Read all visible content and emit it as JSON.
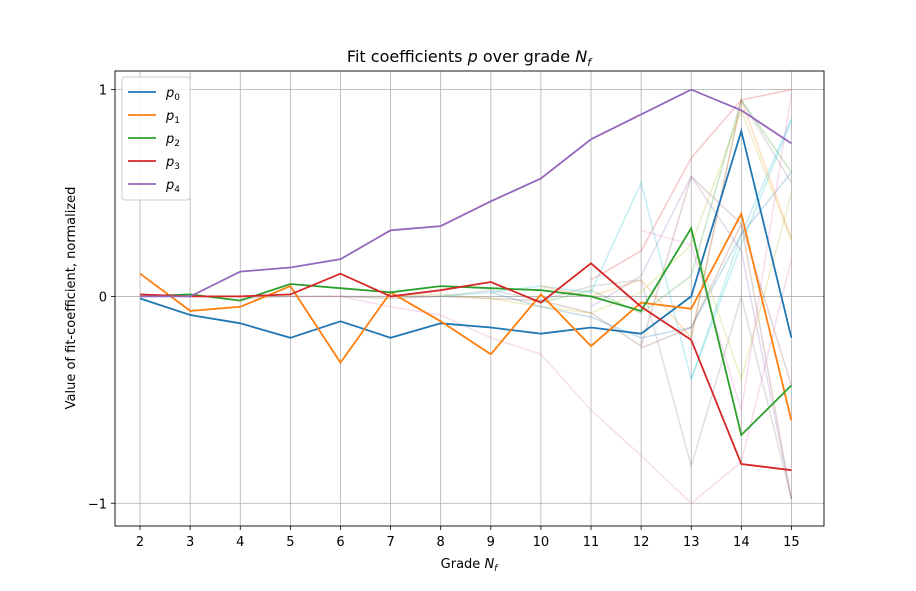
{
  "chart_data": {
    "type": "line",
    "title": "Fit coefficients p over grade N_f",
    "title_parts": {
      "pre": "Fit coefficients ",
      "var": "p",
      "mid": " over grade ",
      "var2": "N",
      "sub2": "f"
    },
    "xlabel": "Grade N_f",
    "xlabel_parts": {
      "pre": "Grade ",
      "var": "N",
      "sub": "f"
    },
    "ylabel": "Value of fit-coefficient, normalized",
    "x": [
      2,
      3,
      4,
      5,
      6,
      7,
      8,
      9,
      10,
      11,
      12,
      13,
      14,
      15
    ],
    "xlim": [
      1.5,
      15.65
    ],
    "ylim": [
      -1.11,
      1.09
    ],
    "yticks": [
      -1,
      0,
      1
    ],
    "ytick_labels": [
      "−1",
      "0",
      "1"
    ],
    "grid": true,
    "legend_position": "top-left",
    "series": [
      {
        "name": "p0",
        "label_base": "p",
        "label_sub": "0",
        "color": "#1f77b4",
        "values": [
          -0.01,
          -0.09,
          -0.13,
          -0.2,
          -0.12,
          -0.2,
          -0.13,
          -0.15,
          -0.18,
          -0.15,
          -0.18,
          0.0,
          0.8,
          -0.2
        ]
      },
      {
        "name": "p1",
        "label_base": "p",
        "label_sub": "1",
        "color": "#ff7f0e",
        "values": [
          0.11,
          -0.07,
          -0.05,
          0.05,
          -0.32,
          0.02,
          -0.12,
          -0.28,
          0.01,
          -0.24,
          -0.03,
          -0.06,
          0.4,
          -0.6
        ]
      },
      {
        "name": "p2",
        "label_base": "p",
        "label_sub": "2",
        "color": "#2ca02c",
        "values": [
          0.0,
          0.01,
          -0.02,
          0.06,
          0.04,
          0.02,
          0.05,
          0.04,
          0.03,
          0.0,
          -0.07,
          0.33,
          -0.67,
          -0.43
        ]
      },
      {
        "name": "p3",
        "label_base": "p",
        "label_sub": "3",
        "color": "#d62728",
        "values": [
          0.01,
          0.0,
          0.0,
          0.01,
          0.11,
          0.0,
          0.03,
          0.07,
          -0.03,
          0.16,
          -0.05,
          -0.21,
          -0.81,
          -0.84
        ]
      },
      {
        "name": "p4",
        "label_base": "p",
        "label_sub": "4",
        "color": "#9467bd",
        "values": [
          0.0,
          0.0,
          0.12,
          0.14,
          0.18,
          0.32,
          0.34,
          0.46,
          0.57,
          0.76,
          0.88,
          1.0,
          0.9,
          0.74
        ]
      }
    ],
    "background_series": [
      {
        "color": "#8c564b",
        "start": 4,
        "values": [
          -0.01,
          0.0,
          0.0,
          -0.01,
          0.0,
          -0.01,
          -0.02,
          -0.08,
          -0.24,
          0.58,
          0.35,
          -0.98
        ]
      },
      {
        "color": "#e377c2",
        "start": 5,
        "values": [
          0.0,
          0.0,
          -0.05,
          -0.09,
          -0.2,
          -0.28,
          -0.55,
          -0.77,
          -1.0,
          -0.8,
          0.18
        ]
      },
      {
        "color": "#7f7f7f",
        "start": 6,
        "values": [
          0.0,
          0.0,
          0.0,
          0.03,
          -0.02,
          0.05,
          0.08,
          -0.82,
          0.0,
          -0.98
        ]
      },
      {
        "color": "#bcbd22",
        "start": 7,
        "values": [
          0.0,
          0.01,
          -0.01,
          -0.05,
          -0.08,
          0.02,
          0.25,
          0.9,
          0.27
        ]
      },
      {
        "color": "#17becf",
        "start": 8,
        "values": [
          0.0,
          0.02,
          0.05,
          0.02,
          0.55,
          -0.4,
          0.3,
          0.86
        ]
      },
      {
        "color": "#1f77b4",
        "start": 9,
        "values": [
          0.02,
          -0.05,
          -0.1,
          -0.2,
          -0.15,
          0.3,
          0.6
        ]
      },
      {
        "color": "#ff7f0e",
        "start": 10,
        "values": [
          0.05,
          0.0,
          0.08,
          -0.2,
          0.95,
          0.28
        ]
      },
      {
        "color": "#2ca02c",
        "start": 10,
        "values": [
          -0.03,
          0.03,
          -0.08,
          0.1,
          0.95,
          0.6
        ]
      },
      {
        "color": "#d62728",
        "start": 11,
        "values": [
          0.08,
          0.22,
          0.67,
          0.95,
          1.0
        ]
      },
      {
        "color": "#9467bd",
        "start": 11,
        "values": [
          -0.05,
          0.1,
          0.58,
          0.22,
          -0.98
        ]
      },
      {
        "color": "#8c564b",
        "start": 12,
        "values": [
          -0.25,
          -0.15,
          0.35,
          -0.43
        ]
      },
      {
        "color": "#e377c2",
        "start": 12,
        "values": [
          0.32,
          0.25,
          -0.55,
          0.98
        ]
      },
      {
        "color": "#7f7f7f",
        "start": 13,
        "values": [
          -0.2,
          0.95,
          0.55
        ]
      },
      {
        "color": "#bcbd22",
        "start": 13,
        "values": [
          0.3,
          -0.4,
          0.5
        ]
      },
      {
        "color": "#17becf",
        "start": 13,
        "values": [
          -0.4,
          0.25,
          0.85
        ]
      }
    ]
  }
}
